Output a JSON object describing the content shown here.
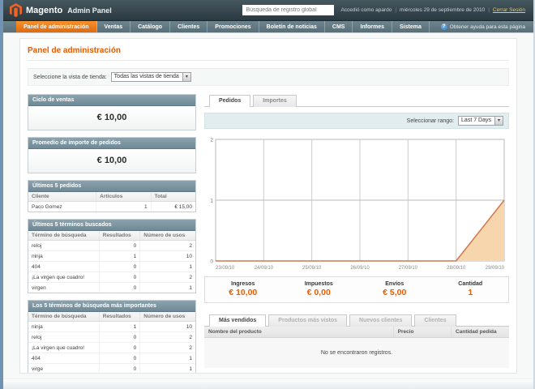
{
  "colors": {
    "accent_orange": "#e85d00",
    "nav_active": "#e8720c",
    "box_header": "#7e97a3"
  },
  "header": {
    "brand": "Magento",
    "brand_suffix": "Admin Panel",
    "search_placeholder": "Búsqueda de registro global",
    "logged_in_as": "Accedió como apardo",
    "date": "miércoles 29 de septiembre de 2010",
    "logout_label": "Cerrar Sesión"
  },
  "nav": {
    "items": [
      {
        "label": "Panel de administración",
        "active": true
      },
      {
        "label": "Ventas",
        "active": false
      },
      {
        "label": "Catálogo",
        "active": false
      },
      {
        "label": "Clientes",
        "active": false
      },
      {
        "label": "Promociones",
        "active": false
      },
      {
        "label": "Boletín de noticias",
        "active": false
      },
      {
        "label": "CMS",
        "active": false
      },
      {
        "label": "Informes",
        "active": false
      },
      {
        "label": "Sistema",
        "active": false
      }
    ],
    "help_label": "Obtener ayuda para esta página"
  },
  "page": {
    "title": "Panel de administración",
    "store_view_label": "Seleccione la vista de tienda:",
    "store_view_value": "Todas las vistas de tienda"
  },
  "sidebar": {
    "lifetime_sales": {
      "title": "Ciclo de ventas",
      "value": "€ 10,00"
    },
    "average_orders": {
      "title": "Promedio de importe de pedidos",
      "value": "€ 10,00"
    },
    "last_orders": {
      "title": "Últimos 5 pedidos",
      "columns": [
        "Cliente",
        "Artículos",
        "Total"
      ],
      "rows": [
        [
          "Paco Gomez",
          "1",
          "€ 15,00"
        ]
      ]
    },
    "last_search_terms": {
      "title": "Últimos 5 términos buscados",
      "columns": [
        "Término de búsqueda",
        "Resultados",
        "Número de usos"
      ],
      "rows": [
        [
          "reloj",
          "0",
          "2"
        ],
        [
          "ninja",
          "1",
          "10"
        ],
        [
          "404",
          "0",
          "1"
        ],
        [
          "¡La virgen que cuadro!",
          "0",
          "2"
        ],
        [
          "virgen",
          "0",
          "1"
        ]
      ]
    },
    "top_search_terms": {
      "title": "Los 5 términos de búsqueda más importantes",
      "columns": [
        "Término de búsqueda",
        "Resultados",
        "Número de usos"
      ],
      "rows": [
        [
          "ninja",
          "1",
          "10"
        ],
        [
          "reloj",
          "0",
          "2"
        ],
        [
          "¡La virgen que cuadro!",
          "0",
          "2"
        ],
        [
          "404",
          "0",
          "1"
        ],
        [
          "virge",
          "0",
          "1"
        ]
      ]
    }
  },
  "main": {
    "tabs": [
      {
        "label": "Pedidos",
        "active": true
      },
      {
        "label": "Importes",
        "active": false
      }
    ],
    "range_label": "Seleccionar rango:",
    "range_value": "Last 7 Days",
    "totals": [
      {
        "label": "Ingresos",
        "value": "€ 10,00"
      },
      {
        "label": "Impuestos",
        "value": "€ 0,00"
      },
      {
        "label": "Envíos",
        "value": "€ 5,00"
      },
      {
        "label": "Cantidad",
        "value": "1"
      }
    ],
    "bottom_tabs": [
      {
        "label": "Más vendidos",
        "active": true
      },
      {
        "label": "Productos más vistos",
        "active": false
      },
      {
        "label": "Nuevos clientes",
        "active": false
      },
      {
        "label": "Clientes",
        "active": false
      }
    ],
    "products_grid": {
      "columns": [
        "Nombre del producto",
        "Precio",
        "Cantidad pedida"
      ],
      "empty_text": "No se encontraron registros."
    }
  },
  "icons": {
    "dropdown_arrow": "▾",
    "help": "?"
  },
  "chart_data": {
    "type": "area",
    "title": "Pedidos — Last 7 Days",
    "x": [
      "23/09/10",
      "24/09/10",
      "25/09/10",
      "26/09/10",
      "27/09/10",
      "28/09/10",
      "29/09/10"
    ],
    "series": [
      {
        "name": "Pedidos",
        "values": [
          0,
          0,
          0,
          0,
          0,
          0,
          1
        ]
      }
    ],
    "ylim": [
      0,
      2
    ],
    "yticks": [
      0,
      1,
      2
    ],
    "grid": true,
    "legend": false,
    "fill_color": "#f7d6ad",
    "line_color": "#d0774b"
  }
}
